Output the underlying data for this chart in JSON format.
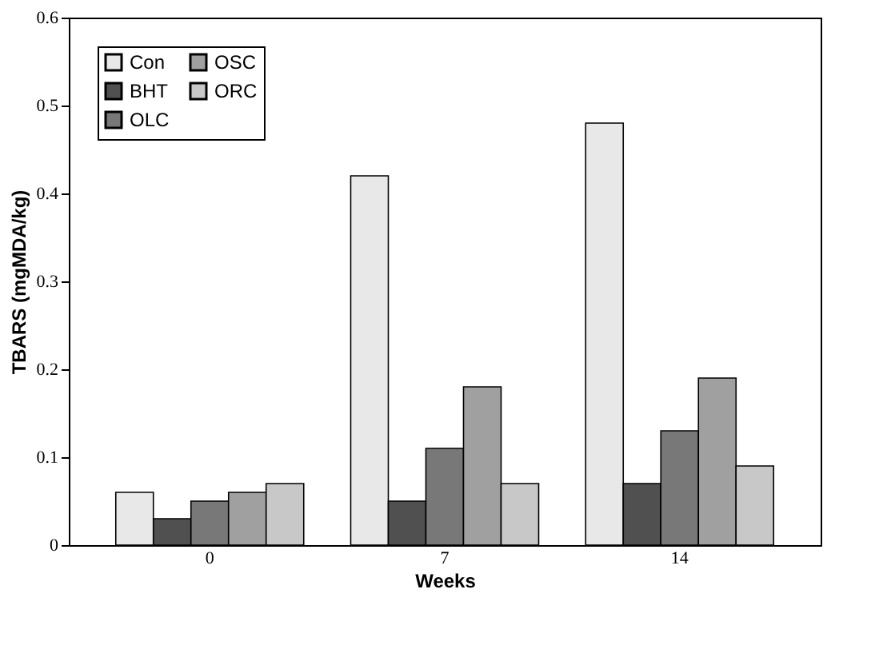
{
  "chart_data": {
    "type": "bar",
    "xlabel": "Weeks",
    "ylabel": "TBARS (mgMDA/kg)",
    "categories": [
      "0",
      "7",
      "14"
    ],
    "series": [
      {
        "name": "Con",
        "color": "#e8e8e8",
        "values": [
          0.06,
          0.42,
          0.48
        ]
      },
      {
        "name": "BHT",
        "color": "#505050",
        "values": [
          0.03,
          0.05,
          0.07
        ]
      },
      {
        "name": "OLC",
        "color": "#787878",
        "values": [
          0.05,
          0.11,
          0.13
        ]
      },
      {
        "name": "OSC",
        "color": "#a0a0a0",
        "values": [
          0.06,
          0.18,
          0.19
        ]
      },
      {
        "name": "ORC",
        "color": "#c8c8c8",
        "values": [
          0.07,
          0.07,
          0.09
        ]
      }
    ],
    "ylim": [
      0,
      0.6
    ],
    "yticks": [
      0,
      0.1,
      0.2,
      0.3,
      0.4,
      0.5,
      0.6
    ],
    "grid": false,
    "legend": "top left"
  }
}
